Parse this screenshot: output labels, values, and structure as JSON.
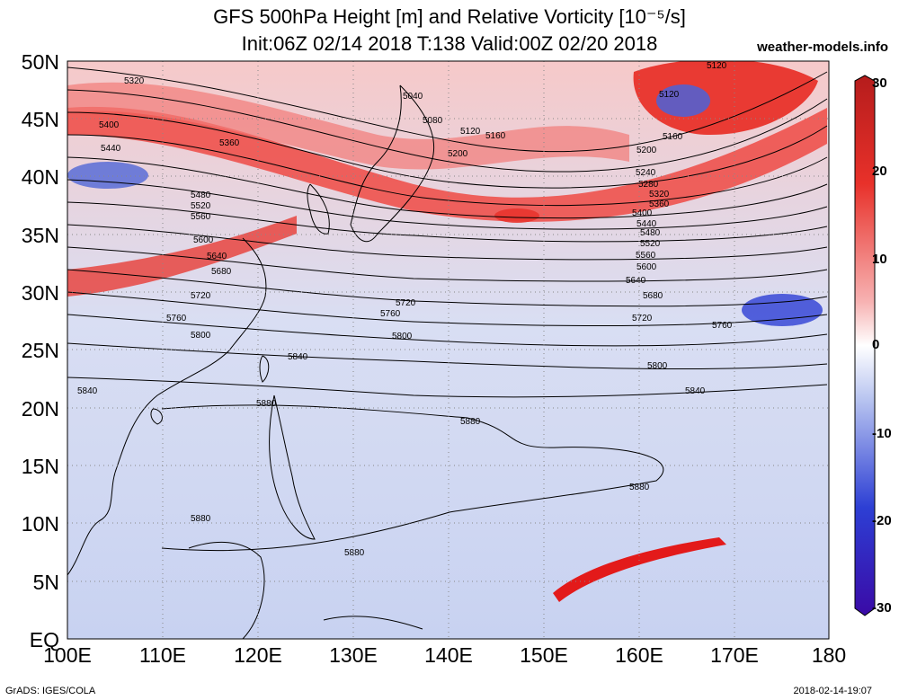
{
  "title_line1": "GFS 500hPa Height [m] and Relative Vorticity [10⁻⁵/s]",
  "title_line2": "Init:06Z 02/14 2018 T:138 Valid:00Z 02/20 2018",
  "brand": "weather-models.info",
  "footer_left": "GrADS: IGES/COLA",
  "footer_right": "2018-02-14-19:07",
  "map": {
    "lat_range": [
      0,
      50
    ],
    "lon_range": [
      100,
      180
    ],
    "lat_ticks": [
      "50N",
      "45N",
      "40N",
      "35N",
      "30N",
      "25N",
      "20N",
      "15N",
      "10N",
      "5N",
      "EQ"
    ],
    "lon_ticks": [
      "100E",
      "110E",
      "120E",
      "130E",
      "140E",
      "150E",
      "160E",
      "170E",
      "180"
    ],
    "contour_labels": [
      "5040",
      "5080",
      "5120",
      "5160",
      "5200",
      "5240",
      "5280",
      "5320",
      "5360",
      "5400",
      "5440",
      "5480",
      "5520",
      "5560",
      "5600",
      "5640",
      "5680",
      "5720",
      "5760",
      "5800",
      "5840",
      "5880"
    ]
  },
  "colorbar": {
    "ticks": [
      "30",
      "20",
      "10",
      "0",
      "-10",
      "-20",
      "-30"
    ],
    "colors": {
      "high": "#b51c1c",
      "mid": "#ffffff",
      "low": "#3a0aa6"
    }
  },
  "colors": {
    "positive_vorticity": "#e8312a",
    "negative_vorticity": "#3b57d6",
    "background_field": "#c9d3f2"
  }
}
